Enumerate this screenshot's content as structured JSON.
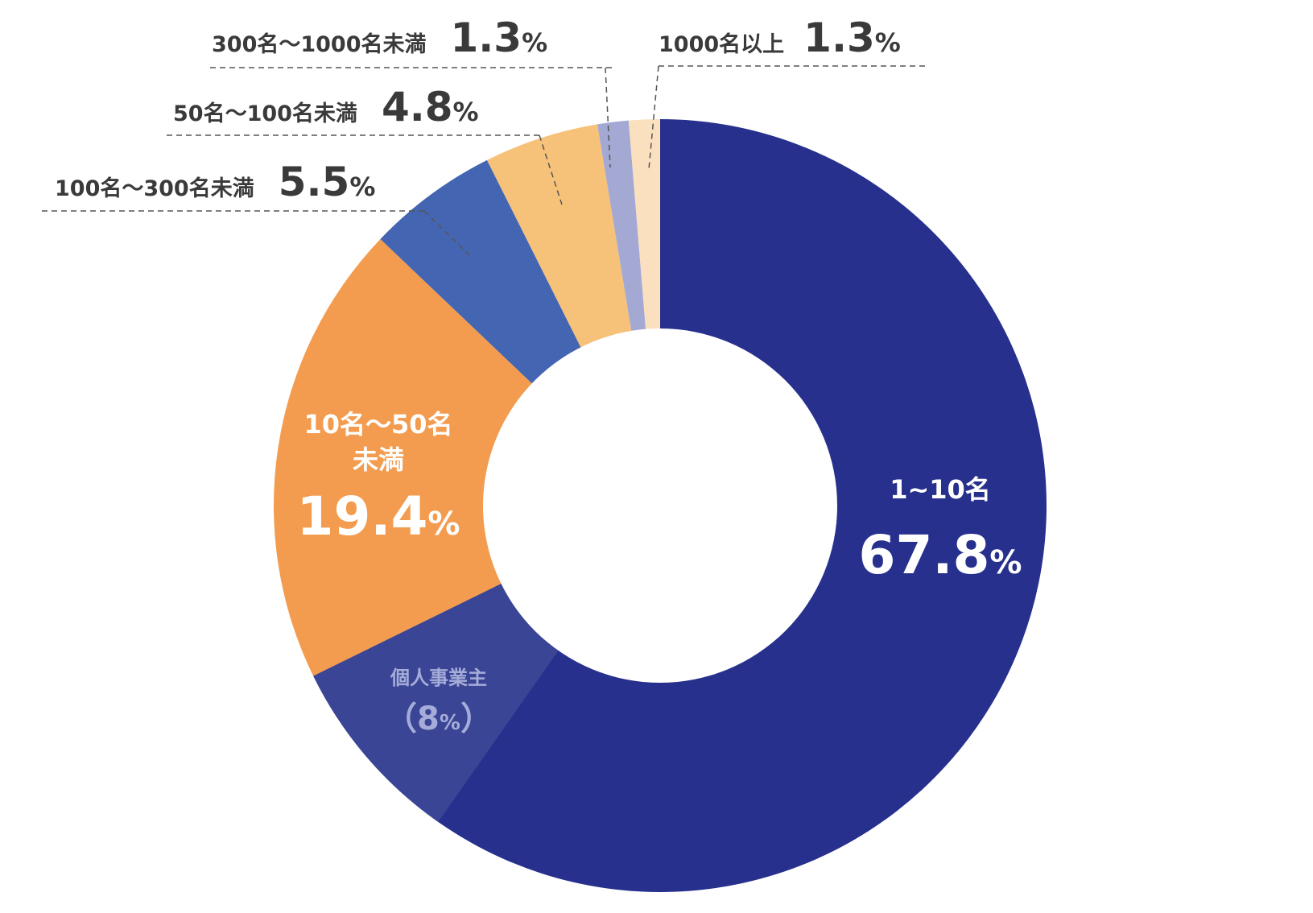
{
  "chart_data": {
    "type": "pie",
    "variant": "donut",
    "start": "12 o'clock, clockwise",
    "slices": [
      {
        "label": "1~10名",
        "value": 67.8,
        "color": "#27318d",
        "sub": {
          "label": "個人事業主",
          "open": "（",
          "value": "8",
          "unit": "%",
          "close": "）",
          "color": "#3a4595"
        }
      },
      {
        "label": "10名～50名未満",
        "label_lines": [
          "10名～50名",
          "未満"
        ],
        "value": 19.4,
        "color": "#f39c4f"
      },
      {
        "label": "100名～300名未満",
        "value": 5.5,
        "color": "#4466b2"
      },
      {
        "label": "50名～100名未満",
        "value": 4.8,
        "color": "#f6c27a"
      },
      {
        "label": "300名～1000名未満",
        "value": 1.3,
        "color": "#a4a9d3"
      },
      {
        "label": "1000名以上",
        "value": 1.3,
        "color": "#fbe0bf"
      }
    ],
    "percent_symbol": "%"
  }
}
